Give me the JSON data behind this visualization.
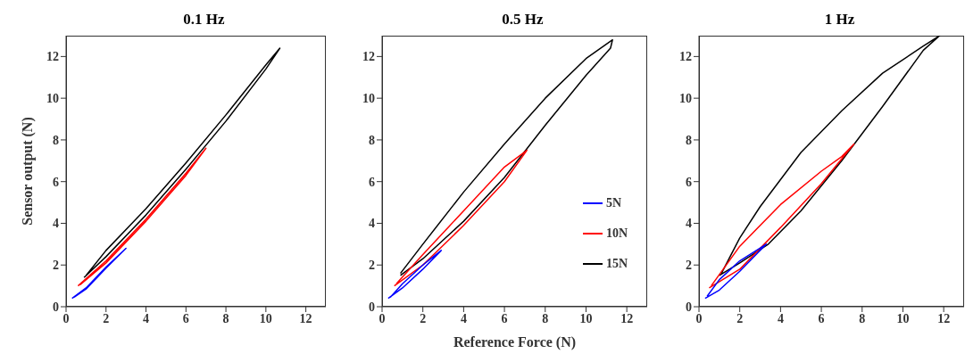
{
  "chart_data": [
    {
      "type": "line",
      "title": "0.1 Hz",
      "ylabel": "Sensor output (N)",
      "xlim": [
        0,
        13
      ],
      "ylim": [
        0,
        13
      ],
      "xticks": [
        0,
        2,
        4,
        6,
        8,
        10,
        12
      ],
      "yticks": [
        0,
        2,
        4,
        6,
        8,
        10,
        12
      ],
      "grid": false,
      "legend": false,
      "marker": "none",
      "line_style": "solid",
      "series": [
        {
          "color": "#0000ff",
          "x": [
            0.3,
            1,
            2,
            3,
            2,
            1,
            0.4
          ],
          "values": [
            0.4,
            0.9,
            1.9,
            2.8,
            1.85,
            0.85,
            0.45
          ]
        },
        {
          "color": "#ff0000",
          "x": [
            0.6,
            2,
            4,
            6,
            7,
            6,
            4,
            2,
            0.7
          ],
          "values": [
            1.0,
            2.2,
            4.2,
            6.4,
            7.6,
            6.3,
            4.1,
            2.1,
            1.05
          ]
        },
        {
          "color": "#000000",
          "x": [
            0.9,
            2,
            4,
            6,
            8,
            10,
            10.7,
            10,
            8,
            6,
            4,
            2,
            1.0
          ],
          "values": [
            1.4,
            2.4,
            4.4,
            6.6,
            8.9,
            11.4,
            12.4,
            11.6,
            9.2,
            6.9,
            4.7,
            2.7,
            1.5
          ]
        }
      ]
    },
    {
      "type": "line",
      "title": "0.5 Hz",
      "xlabel": "Reference Force (N)",
      "xlim": [
        0,
        13
      ],
      "ylim": [
        0,
        13
      ],
      "xticks": [
        0,
        2,
        4,
        6,
        8,
        10,
        12
      ],
      "yticks": [
        0,
        2,
        4,
        6,
        8,
        10,
        12
      ],
      "grid": false,
      "legend": "right",
      "marker": "none",
      "line_style": "solid",
      "series": [
        {
          "name": "5N",
          "color": "#0000ff",
          "x": [
            0.3,
            1,
            2,
            2.9,
            2,
            1,
            0.4
          ],
          "values": [
            0.4,
            0.9,
            1.8,
            2.7,
            2.0,
            1.1,
            0.45
          ]
        },
        {
          "name": "10N",
          "color": "#ff0000",
          "x": [
            0.6,
            2,
            4,
            6,
            7.1,
            6,
            4,
            2,
            0.7
          ],
          "values": [
            1.0,
            2.0,
            3.9,
            6.0,
            7.5,
            6.7,
            4.6,
            2.5,
            1.1
          ]
        },
        {
          "name": "15N",
          "color": "#000000",
          "x": [
            0.9,
            2,
            4,
            6,
            8,
            10,
            11.2,
            11.3,
            10,
            8,
            6,
            4,
            2,
            0.9
          ],
          "values": [
            1.5,
            2.3,
            4.1,
            6.2,
            8.7,
            11.1,
            12.4,
            12.8,
            11.9,
            10.0,
            7.8,
            5.5,
            3.0,
            1.6
          ]
        }
      ]
    },
    {
      "type": "line",
      "title": "1 Hz",
      "xlim": [
        0,
        13
      ],
      "ylim": [
        0,
        13
      ],
      "xticks": [
        0,
        2,
        4,
        6,
        8,
        10,
        12
      ],
      "yticks": [
        0,
        2,
        4,
        6,
        8,
        10,
        12
      ],
      "grid": false,
      "legend": false,
      "marker": "none",
      "line_style": "solid",
      "series": [
        {
          "color": "#0000ff",
          "x": [
            0.3,
            1,
            2,
            3.3,
            2,
            1,
            0.4
          ],
          "values": [
            0.4,
            0.8,
            1.7,
            3.0,
            2.2,
            1.3,
            0.5
          ]
        },
        {
          "color": "#ff0000",
          "x": [
            0.5,
            2,
            4,
            6,
            7.6,
            7,
            6,
            4,
            2,
            0.6
          ],
          "values": [
            0.9,
            1.8,
            3.8,
            5.9,
            7.8,
            7.2,
            6.5,
            4.9,
            2.9,
            1.0
          ]
        },
        {
          "color": "#000000",
          "x": [
            1,
            2,
            3.4,
            5,
            7,
            9,
            11,
            11.8,
            11,
            9,
            7,
            5,
            3,
            2,
            1.1
          ],
          "values": [
            1.5,
            2.1,
            3.0,
            4.6,
            7.0,
            9.6,
            12.3,
            13.0,
            12.5,
            11.2,
            9.4,
            7.4,
            4.8,
            3.3,
            1.6
          ]
        }
      ]
    }
  ]
}
